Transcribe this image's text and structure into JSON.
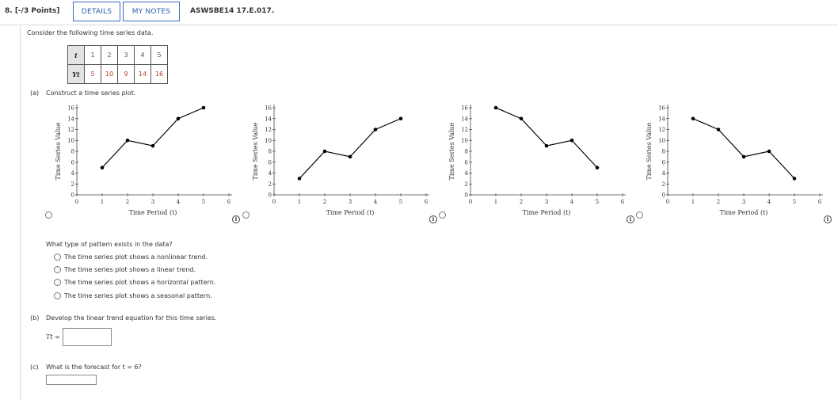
{
  "header": {
    "points": "8. [-/3 Points]",
    "details_label": "DETAILS",
    "my_notes_label": "MY NOTES",
    "question_id": "ASWSBE14 17.E.017."
  },
  "intro": "Consider the following time series data.",
  "table": {
    "t_label": "t",
    "y_label": "Yt",
    "t_values": [
      "1",
      "2",
      "3",
      "4",
      "5"
    ],
    "y_values": [
      "5",
      "10",
      "9",
      "14",
      "16"
    ]
  },
  "part_a": {
    "label": "(a)",
    "prompt": "Construct a time series plot."
  },
  "chart_data": [
    {
      "type": "line",
      "x": [
        1,
        2,
        3,
        4,
        5
      ],
      "y": [
        5,
        10,
        9,
        14,
        16
      ],
      "xlabel": "Time Period (t)",
      "ylabel": "Time Series Value",
      "xlim": [
        0,
        6
      ],
      "ylim": [
        0,
        16
      ],
      "x_ticks": [
        "0",
        "1",
        "2",
        "3",
        "4",
        "5",
        "6"
      ],
      "y_ticks": [
        "0",
        "2",
        "4",
        "6",
        "8",
        "10",
        "12",
        "14",
        "16"
      ],
      "grid": false,
      "color": "#000000"
    },
    {
      "type": "line",
      "x": [
        1,
        2,
        3,
        4,
        5
      ],
      "y": [
        3,
        8,
        7,
        12,
        14
      ],
      "xlabel": "Time Period (t)",
      "ylabel": "Time Series Value",
      "xlim": [
        0,
        6
      ],
      "ylim": [
        0,
        16
      ],
      "x_ticks": [
        "0",
        "1",
        "2",
        "3",
        "4",
        "5",
        "6"
      ],
      "y_ticks": [
        "0",
        "2",
        "4",
        "6",
        "8",
        "10",
        "12",
        "14",
        "16"
      ],
      "grid": false,
      "color": "#000000"
    },
    {
      "type": "line",
      "x": [
        1,
        2,
        3,
        4,
        5
      ],
      "y": [
        16,
        14,
        9,
        10,
        5
      ],
      "xlabel": "Time Period (t)",
      "ylabel": "Time Series Value",
      "xlim": [
        0,
        6
      ],
      "ylim": [
        0,
        16
      ],
      "x_ticks": [
        "0",
        "1",
        "2",
        "3",
        "4",
        "5",
        "6"
      ],
      "y_ticks": [
        "0",
        "2",
        "4",
        "6",
        "8",
        "10",
        "12",
        "14",
        "16"
      ],
      "grid": false,
      "color": "#000000"
    },
    {
      "type": "line",
      "x": [
        1,
        2,
        3,
        4,
        5
      ],
      "y": [
        14,
        12,
        7,
        8,
        3
      ],
      "xlabel": "Time Period (t)",
      "ylabel": "Time Series Value",
      "xlim": [
        0,
        6
      ],
      "ylim": [
        0,
        16
      ],
      "x_ticks": [
        "0",
        "1",
        "2",
        "3",
        "4",
        "5",
        "6"
      ],
      "y_ticks": [
        "0",
        "2",
        "4",
        "6",
        "8",
        "10",
        "12",
        "14",
        "16"
      ],
      "grid": false,
      "color": "#000000"
    }
  ],
  "pattern_question": {
    "prompt": "What type of pattern exists in the data?",
    "options": [
      "The time series plot shows a nonlinear trend.",
      "The time series plot shows a linear trend.",
      "The time series plot shows a horizontal pattern.",
      "The time series plot shows a seasonal pattern."
    ]
  },
  "part_b": {
    "label": "(b)",
    "prompt": "Develop the linear trend equation for this time series.",
    "eq_label": "Tt =",
    "input_value": ""
  },
  "part_c": {
    "label": "(c)",
    "prompt": "What is the forecast for t = 6?",
    "input_value": ""
  },
  "icons": {
    "radio": "radio-button-icon",
    "info": "info-circle-icon"
  },
  "colors": {
    "button_border": "#3a6cc4",
    "button_text": "#2a5db0",
    "y_values_text": "#c0392b",
    "table_header_bg": "#e3e3e3"
  }
}
